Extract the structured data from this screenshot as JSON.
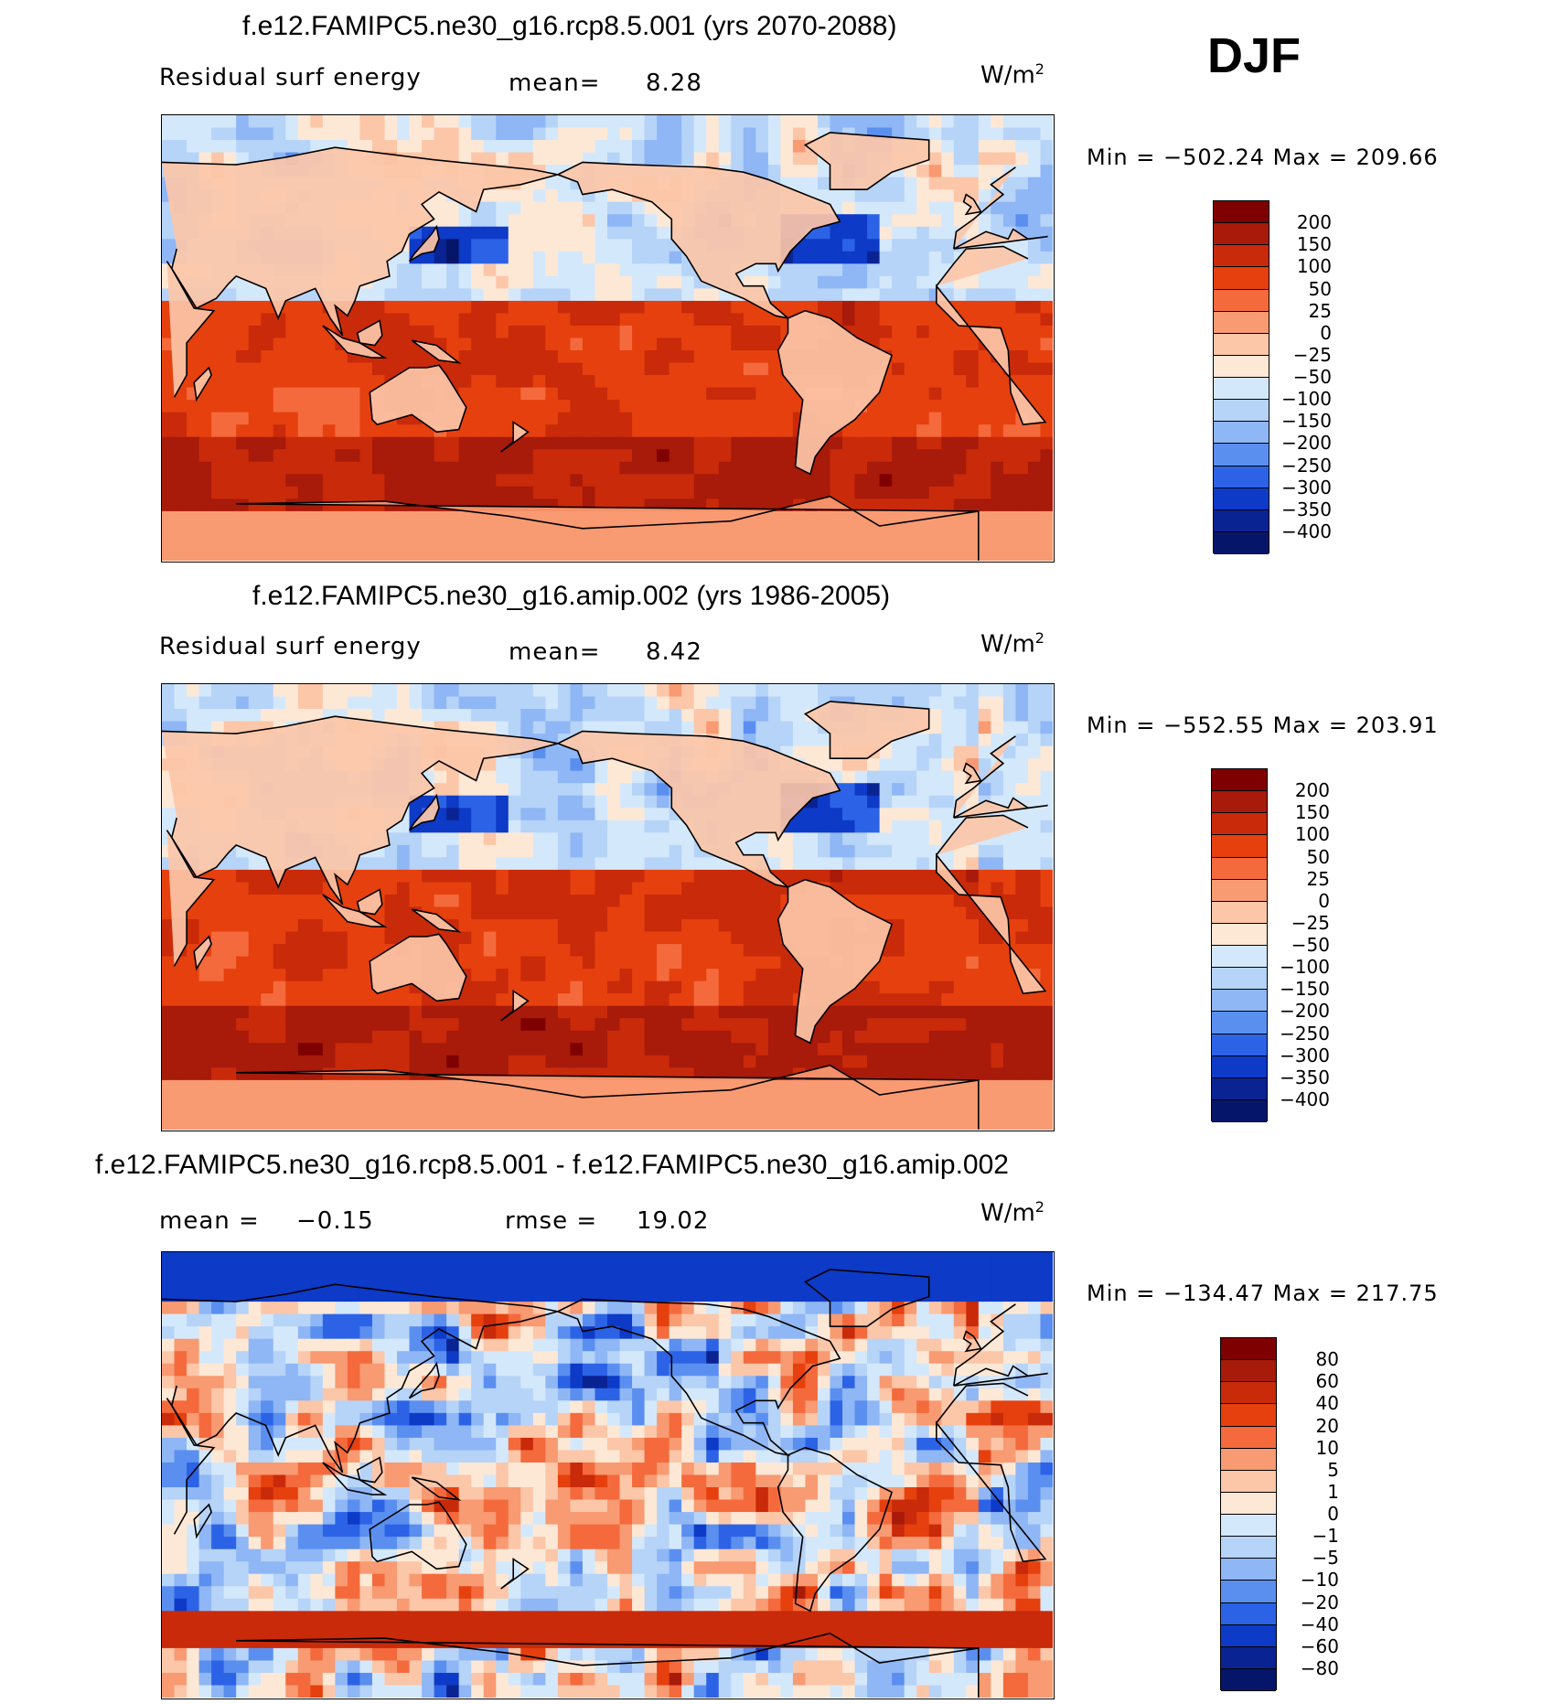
{
  "season": "DJF",
  "chart_data": [
    {
      "type": "heatmap",
      "title": "f.e12.FAMIPC5.ne30_g16.rcp8.5.001 (yrs 2070-2088)",
      "variable": "Residual surf energy",
      "mean_label": "mean=",
      "mean": "8.28",
      "units_base": "W/m",
      "units_exp": "2",
      "minmax": "Min = −502.24 Max = 209.66",
      "min": -502.24,
      "max": 209.66,
      "levels": [
        "200",
        "150",
        "100",
        "50",
        "25",
        "0",
        "−25",
        "−50",
        "−100",
        "−150",
        "−200",
        "−250",
        "−300",
        "−350",
        "−400"
      ],
      "colors": [
        "#7f0000",
        "#a81a0a",
        "#c92a0a",
        "#e5400e",
        "#f46a3c",
        "#f89a72",
        "#fcc6a8",
        "#fde8d6",
        "#d4e8fb",
        "#b6d3f8",
        "#8fb6f5",
        "#5a8ff0",
        "#2c63e6",
        "#0d3ac6",
        "#0a2392",
        "#05166a"
      ]
    },
    {
      "type": "heatmap",
      "title": "f.e12.FAMIPC5.ne30_g16.amip.002 (yrs 1986-2005)",
      "variable": "Residual surf energy",
      "mean_label": "mean=",
      "mean": "8.42",
      "units_base": "W/m",
      "units_exp": "2",
      "minmax": "Min = −552.55 Max = 203.91",
      "min": -552.55,
      "max": 203.91,
      "levels": [
        "200",
        "150",
        "100",
        "50",
        "25",
        "0",
        "−25",
        "−50",
        "−100",
        "−150",
        "−200",
        "−250",
        "−300",
        "−350",
        "−400"
      ],
      "colors": [
        "#7f0000",
        "#a81a0a",
        "#c92a0a",
        "#e5400e",
        "#f46a3c",
        "#f89a72",
        "#fcc6a8",
        "#fde8d6",
        "#d4e8fb",
        "#b6d3f8",
        "#8fb6f5",
        "#5a8ff0",
        "#2c63e6",
        "#0d3ac6",
        "#0a2392",
        "#05166a"
      ]
    },
    {
      "type": "heatmap",
      "title": "f.e12.FAMIPC5.ne30_g16.rcp8.5.001 - f.e12.FAMIPC5.ne30_g16.amip.002",
      "mean_label": "mean =",
      "mean": "−0.15",
      "rmse_label": "rmse =",
      "rmse": "19.02",
      "units_base": "W/m",
      "units_exp": "2",
      "minmax": "Min = −134.47 Max = 217.75",
      "min": -134.47,
      "max": 217.75,
      "levels": [
        "80",
        "60",
        "40",
        "20",
        "10",
        "5",
        "1",
        "0",
        "−1",
        "−5",
        "−10",
        "−20",
        "−40",
        "−60",
        "−80"
      ],
      "colors": [
        "#7f0000",
        "#a81a0a",
        "#c92a0a",
        "#e5400e",
        "#f46a3c",
        "#f89a72",
        "#fcc6a8",
        "#fde8d6",
        "#d4e8fb",
        "#b6d3f8",
        "#8fb6f5",
        "#5a8ff0",
        "#2c63e6",
        "#0d3ac6",
        "#0a2392",
        "#05166a"
      ]
    }
  ]
}
